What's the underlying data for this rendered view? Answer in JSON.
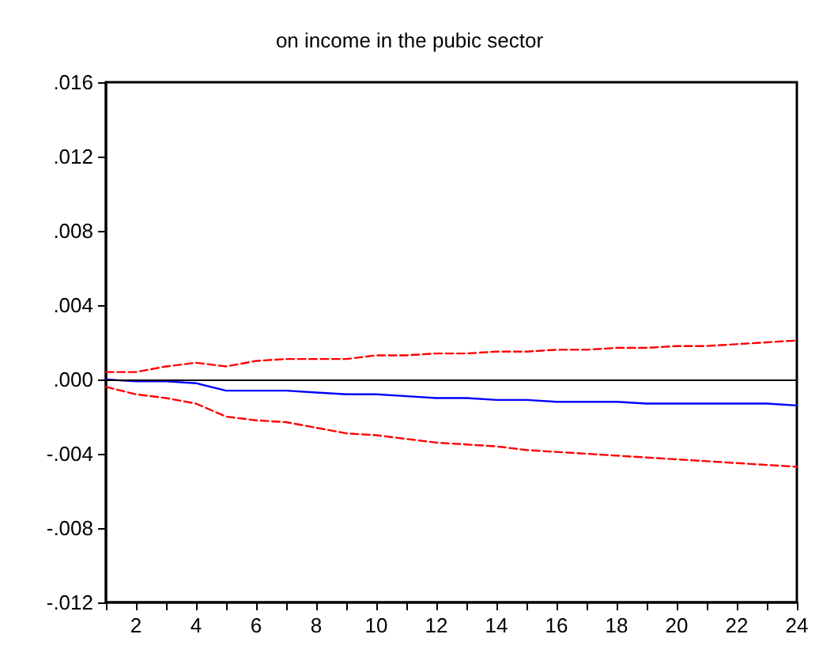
{
  "chart_data": {
    "type": "line",
    "title": "on income in the pubic sector",
    "x": [
      1,
      2,
      3,
      4,
      5,
      6,
      7,
      8,
      9,
      10,
      11,
      12,
      13,
      14,
      15,
      16,
      17,
      18,
      19,
      20,
      21,
      22,
      23,
      24
    ],
    "series": [
      {
        "color": "#0000ff",
        "line_style": "solid",
        "values": [
          0,
          -0.0001,
          -0.0001,
          -0.0002,
          -0.0006,
          -0.0006,
          -0.0006,
          -0.0007,
          -0.0008,
          -0.0008,
          -0.0009,
          -0.001,
          -0.001,
          -0.0011,
          -0.0011,
          -0.0012,
          -0.0012,
          -0.0012,
          -0.0013,
          -0.0013,
          -0.0013,
          -0.0013,
          -0.0013,
          -0.0014
        ]
      },
      {
        "color": "#ff0000",
        "line_style": "dashed",
        "values": [
          0.0004,
          0.0004,
          0.0007,
          0.0009,
          0.0007,
          0.001,
          0.0011,
          0.0011,
          0.0011,
          0.0013,
          0.0013,
          0.0014,
          0.0014,
          0.0015,
          0.0015,
          0.0016,
          0.0016,
          0.0017,
          0.0017,
          0.0018,
          0.0018,
          0.0019,
          0.002,
          0.0021
        ]
      },
      {
        "color": "#ff0000",
        "line_style": "dashed",
        "values": [
          -0.0004,
          -0.0008,
          -0.001,
          -0.0013,
          -0.002,
          -0.0022,
          -0.0023,
          -0.0026,
          -0.0029,
          -0.003,
          -0.0032,
          -0.0034,
          -0.0035,
          -0.0036,
          -0.0038,
          -0.0039,
          -0.004,
          -0.0041,
          -0.0042,
          -0.0043,
          -0.0044,
          -0.0045,
          -0.0046,
          -0.0047
        ]
      }
    ],
    "xlim": [
      1,
      24
    ],
    "xticks": [
      {
        "value": 1,
        "label": null
      },
      2,
      {
        "value": 3,
        "label": null
      },
      4,
      {
        "value": 5,
        "label": null
      },
      6,
      {
        "value": 7,
        "label": null
      },
      8,
      {
        "value": 9,
        "label": null
      },
      10,
      {
        "value": 11,
        "label": null
      },
      12,
      {
        "value": 13,
        "label": null
      },
      14,
      {
        "value": 15,
        "label": null
      },
      16,
      {
        "value": 17,
        "label": null
      },
      18,
      {
        "value": 19,
        "label": null
      },
      20,
      {
        "value": 21,
        "label": null
      },
      22,
      {
        "value": 23,
        "label": null
      },
      24
    ],
    "ylim": [
      -0.012,
      0.016
    ],
    "yticks": [
      {
        "value": -0.012,
        "label": "-.012"
      },
      {
        "value": -0.008,
        "label": "-.008"
      },
      {
        "value": -0.004,
        "label": "-.004"
      },
      {
        "value": 0,
        "label": ".000"
      },
      {
        "value": 0.004,
        "label": ".004"
      },
      {
        "value": 0.008,
        "label": ".008"
      },
      {
        "value": 0.012,
        "label": ".012"
      },
      {
        "value": 0.016,
        "label": ".016"
      }
    ],
    "ref_lines": [
      {
        "axis": "y",
        "value": 0,
        "color": "#000000",
        "line_style": "solid"
      }
    ],
    "grid": false,
    "marker": "none"
  }
}
